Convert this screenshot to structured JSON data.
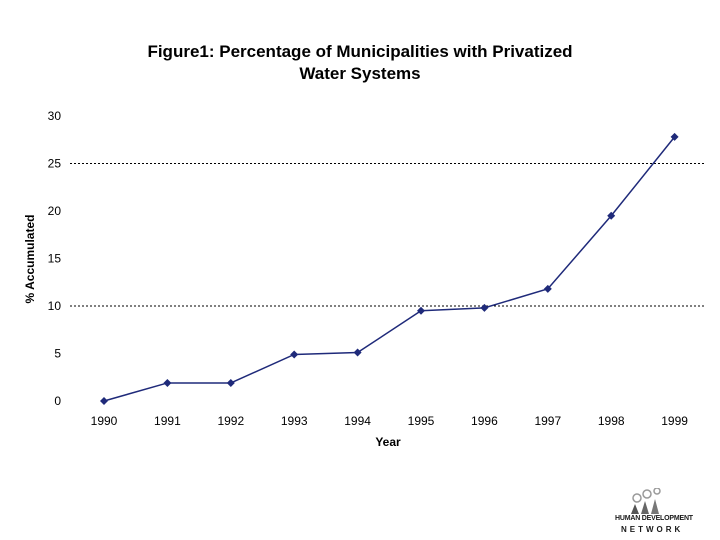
{
  "chart_data": {
    "type": "line",
    "title_lines": [
      "Figure1: Percentage of Municipalities with Privatized",
      "Water Systems"
    ],
    "xlabel": "Year",
    "ylabel": "% Accumulated",
    "categories": [
      "1990",
      "1991",
      "1992",
      "1993",
      "1994",
      "1995",
      "1996",
      "1997",
      "1998",
      "1999"
    ],
    "series": [
      {
        "name": "% Accumulated",
        "values": [
          0,
          1.9,
          1.9,
          4.9,
          5.1,
          9.5,
          9.8,
          11.8,
          19.5,
          27.8
        ]
      }
    ],
    "ylim": [
      0,
      30
    ],
    "yticks": [
      "0",
      "5",
      "10",
      "15",
      "20",
      "25",
      "30"
    ],
    "gridlines": [
      10,
      25
    ],
    "line_color": "#1f2a7a"
  },
  "logo": {
    "line1": "HUMAN DEVELOPMENT",
    "line2": "NETWORK"
  }
}
